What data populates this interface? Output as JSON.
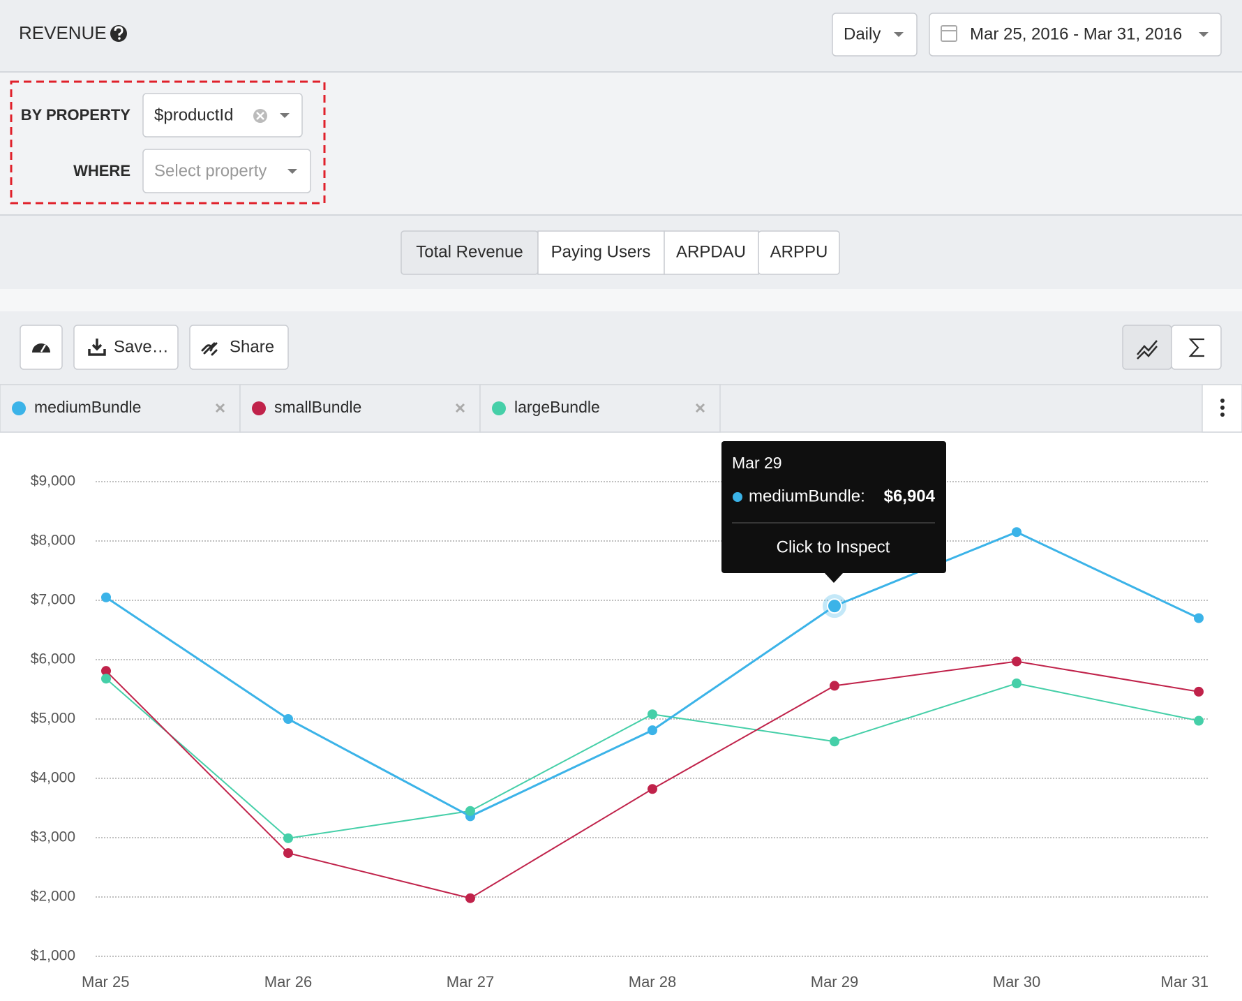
{
  "header": {
    "title": "REVENUE",
    "interval": "Daily",
    "date_range": "Mar 25, 2016 - Mar 31, 2016"
  },
  "filters": {
    "by_property_label": "BY PROPERTY",
    "by_property_value": "$productId",
    "where_label": "WHERE",
    "where_placeholder": "Select property"
  },
  "metric_tabs": [
    "Total Revenue",
    "Paying Users",
    "ARPDAU",
    "ARPPU"
  ],
  "toolbar": {
    "save": "Save…",
    "share": "Share"
  },
  "tooltip": {
    "title": "Mar 29",
    "series": "mediumBundle:",
    "value": "$6,904",
    "action": "Click to Inspect"
  },
  "chart_data": {
    "type": "line",
    "categories": [
      "Mar 25",
      "Mar 26",
      "Mar 27",
      "Mar 28",
      "Mar 29",
      "Mar 30",
      "Mar 31"
    ],
    "ylim": [
      1000,
      9000
    ],
    "yticks": [
      {
        "value": 1000,
        "label": "$1,000"
      },
      {
        "value": 2000,
        "label": "$2,000"
      },
      {
        "value": 3000,
        "label": "$3,000"
      },
      {
        "value": 4000,
        "label": "$4,000"
      },
      {
        "value": 5000,
        "label": "$5,000"
      },
      {
        "value": 6000,
        "label": "$6,000"
      },
      {
        "value": 7000,
        "label": "$7,000"
      },
      {
        "value": 8000,
        "label": "$8,000"
      },
      {
        "value": 9000,
        "label": "$9,000"
      }
    ],
    "grid": true,
    "series": [
      {
        "name": "mediumBundle",
        "color": "#3bb3e8",
        "values": [
          7050,
          5000,
          3360,
          4810,
          6904,
          8150,
          6700
        ]
      },
      {
        "name": "smallBundle",
        "color": "#c0224a",
        "values": [
          5810,
          2740,
          1980,
          3820,
          5560,
          5970,
          5460
        ]
      },
      {
        "name": "largeBundle",
        "color": "#45cfa8",
        "values": [
          5680,
          2990,
          3450,
          5080,
          4620,
          5600,
          4970
        ]
      }
    ]
  }
}
